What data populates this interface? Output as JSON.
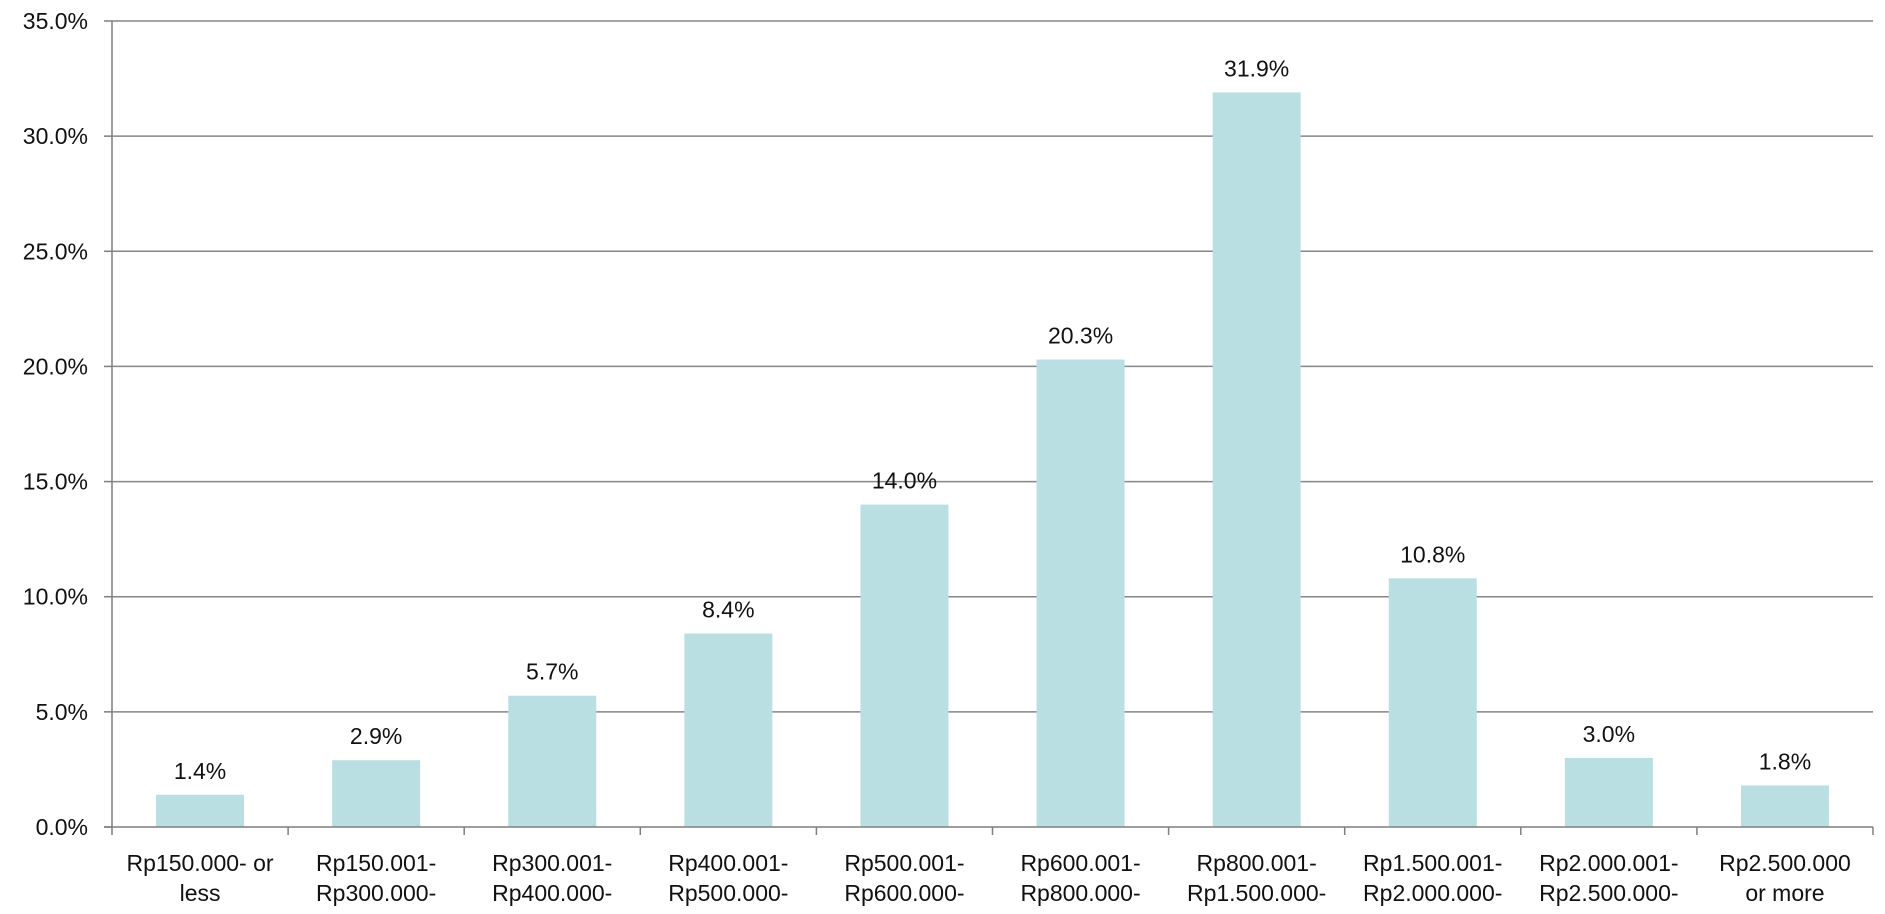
{
  "chart_data": {
    "type": "bar",
    "categories": [
      [
        "Rp150.000- or",
        "less"
      ],
      [
        "Rp150.001-",
        "Rp300.000-"
      ],
      [
        "Rp300.001-",
        "Rp400.000-"
      ],
      [
        "Rp400.001-",
        "Rp500.000-"
      ],
      [
        "Rp500.001-",
        "Rp600.000-"
      ],
      [
        "Rp600.001-",
        "Rp800.000-"
      ],
      [
        "Rp800.001-",
        "Rp1.500.000-"
      ],
      [
        "Rp1.500.001-",
        "Rp2.000.000-"
      ],
      [
        "Rp2.000.001-",
        "Rp2.500.000-"
      ],
      [
        "Rp2.500.000",
        "or more"
      ]
    ],
    "values": [
      1.4,
      2.9,
      5.7,
      8.4,
      14.0,
      20.3,
      31.9,
      10.8,
      3.0,
      1.8
    ],
    "value_labels": [
      "1.4%",
      "2.9%",
      "5.7%",
      "8.4%",
      "14.0%",
      "20.3%",
      "31.9%",
      "10.8%",
      "3.0%",
      "1.8%"
    ],
    "ylim": [
      0,
      35
    ],
    "yticks": [
      0,
      5,
      10,
      15,
      20,
      25,
      30,
      35
    ],
    "ytick_labels": [
      "0.0%",
      "5.0%",
      "10.0%",
      "15.0%",
      "20.0%",
      "25.0%",
      "30.0%",
      "35.0%"
    ],
    "grid": true,
    "legend": "none",
    "bar_color": "#b9dfe3",
    "grid_color": "#868686",
    "axis_color": "#7f7f7f",
    "text_color": "#111111"
  }
}
